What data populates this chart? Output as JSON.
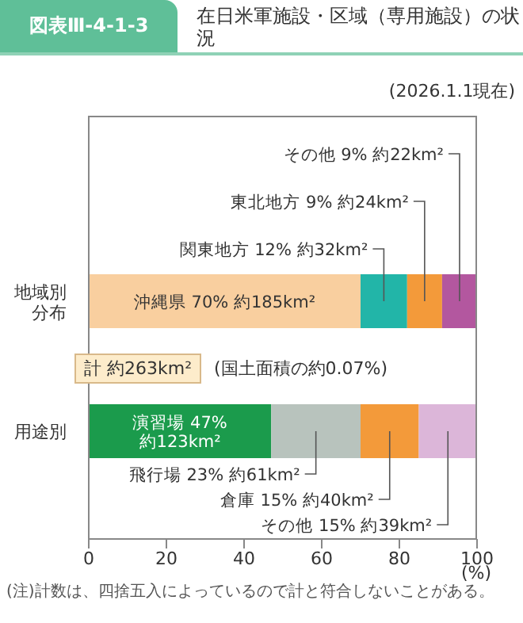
{
  "chart_data": {
    "type": "bar",
    "orientation": "horizontal",
    "stacked": true,
    "title": "在日米軍施設・区域（専用施設）の状況",
    "subtitle": "図表Ⅲ-4-1-3",
    "categories": [
      "地域別分布",
      "用途別"
    ],
    "series": [
      {
        "colors": [
          "#f9cf9f",
          "#1b9b4c"
        ],
        "values": [
          70,
          47
        ],
        "value_labels": [
          "沖縄県 70% 約185km²",
          "演習場 47% 約123km²"
        ]
      },
      {
        "colors": [
          "#22b5a8",
          "#b8c3bd"
        ],
        "values": [
          12,
          23
        ],
        "value_labels": [
          "関東地方 12% 約32km²",
          "飛行場 23% 約61km²"
        ]
      },
      {
        "colors": [
          "#f39a3a",
          "#f39a3a"
        ],
        "values": [
          9,
          15
        ],
        "value_labels": [
          "東北地方 9% 約24km²",
          "倉庫 15% 約40km²"
        ]
      },
      {
        "colors": [
          "#b3579f",
          "#dcb6d9"
        ],
        "values": [
          9,
          15
        ],
        "value_labels": [
          "その他 9% 約22km²",
          "その他 15% 約39km²"
        ]
      }
    ],
    "xlim": [
      0,
      100
    ],
    "xticks": [
      0,
      20,
      40,
      60,
      80,
      100
    ],
    "xlabel": "(%)",
    "grid": false,
    "legend": false,
    "annotations": [
      "(2026.1.1現在)",
      "計 約263km²",
      "(国土面積の約0.07%)",
      "(注)計数は、四捨五入によっているので計と符合しないことがある。"
    ]
  }
}
